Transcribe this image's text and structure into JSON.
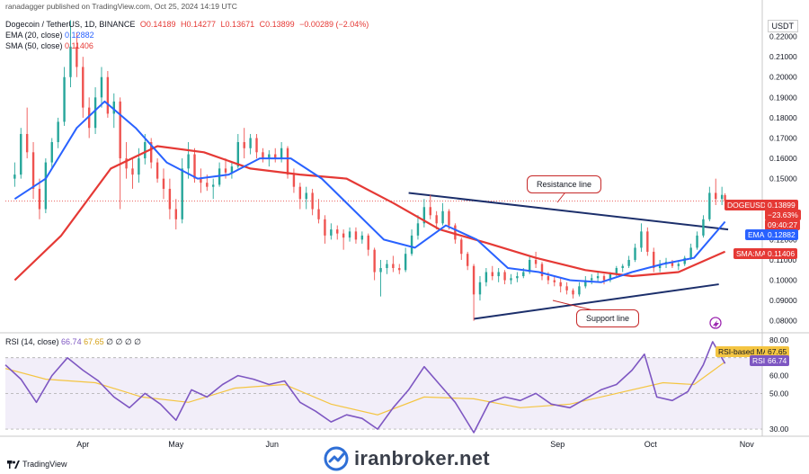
{
  "header": {
    "publisher": "ranadagger published on TradingView.com, Oct 25, 2024 14:19 UTC",
    "symbol": "Dogecoin / TetherUS, 1D, BINANCE",
    "open": "O0.14189",
    "high": "H0.14277",
    "low": "L0.13671",
    "close": "C0.13899",
    "change": "−0.00289 (−2.04%)",
    "ema_label": "EMA (20, close)",
    "ema_value": "0.12882",
    "sma_label": "SMA (50, close)",
    "sma_value": "0.11406"
  },
  "currency_button": "USDT",
  "price_axis": [
    "0.22000",
    "0.21000",
    "0.20000",
    "0.19000",
    "0.18000",
    "0.17000",
    "0.16000",
    "0.15000",
    "0.12000",
    "0.11000",
    "0.10000",
    "0.09000",
    "0.08000"
  ],
  "rsi_axis": [
    "80.00",
    "60.00",
    "50.00",
    "30.00"
  ],
  "time_axis": [
    "Apr",
    "May",
    "Jun",
    "Sep",
    "Oct",
    "Nov"
  ],
  "price_tags": {
    "symbol_tag": "DOGEUSDT",
    "last_price": "0.13899",
    "pct_change": "−23.63%",
    "countdown": "09:40:27",
    "ema_tag": "EMA",
    "ema_price": "0.12882",
    "sma_tag": "SMA:MA",
    "sma_price": "0.11406"
  },
  "rsi": {
    "legend_label": "RSI (14, close)",
    "legend_rsi": "66.74",
    "legend_ma": "67.65",
    "legend_zeros": "∅ ∅ ∅ ∅",
    "ma_tag": "RSI-based MA",
    "ma_value": "67.65",
    "rsi_tag": "RSI",
    "rsi_value": "66.74"
  },
  "annotations": {
    "resistance": "Resistance line",
    "support": "Support line"
  },
  "footer": {
    "brand": "TradingView",
    "watermark": "iranbroker.net"
  },
  "colors": {
    "up": "#26a69a",
    "down": "#ef5350",
    "ema": "#2962ff",
    "sma": "#e53935",
    "rsi": "#7e57c2",
    "rsi_ma": "#f4c542",
    "trendline": "#1c2f6b"
  },
  "chart_data": {
    "type": "candlestick",
    "ticker": "DOGEUSDT",
    "timeframe": "1D",
    "price_range": [
      0.075,
      0.23
    ],
    "rsi_range": [
      26,
      84
    ],
    "x_range": [
      "2024-03-07",
      "2024-11-06"
    ],
    "candles": [
      [
        "2024-03-10",
        0.15,
        0.158,
        0.146,
        0.152
      ],
      [
        "2024-03-12",
        0.152,
        0.175,
        0.15,
        0.172
      ],
      [
        "2024-03-14",
        0.172,
        0.185,
        0.16,
        0.163
      ],
      [
        "2024-03-16",
        0.163,
        0.168,
        0.14,
        0.145
      ],
      [
        "2024-03-18",
        0.145,
        0.15,
        0.13,
        0.135
      ],
      [
        "2024-03-20",
        0.135,
        0.16,
        0.133,
        0.158
      ],
      [
        "2024-03-22",
        0.158,
        0.17,
        0.155,
        0.168
      ],
      [
        "2024-03-24",
        0.168,
        0.18,
        0.165,
        0.178
      ],
      [
        "2024-03-26",
        0.178,
        0.205,
        0.176,
        0.2
      ],
      [
        "2024-03-28",
        0.2,
        0.228,
        0.195,
        0.215
      ],
      [
        "2024-03-30",
        0.215,
        0.222,
        0.2,
        0.205
      ],
      [
        "2024-04-01",
        0.205,
        0.21,
        0.18,
        0.185
      ],
      [
        "2024-04-03",
        0.185,
        0.19,
        0.17,
        0.175
      ],
      [
        "2024-04-05",
        0.175,
        0.195,
        0.172,
        0.19
      ],
      [
        "2024-04-07",
        0.19,
        0.205,
        0.185,
        0.2
      ],
      [
        "2024-04-09",
        0.2,
        0.203,
        0.18,
        0.182
      ],
      [
        "2024-04-11",
        0.182,
        0.192,
        0.175,
        0.188
      ],
      [
        "2024-04-13",
        0.188,
        0.19,
        0.135,
        0.16
      ],
      [
        "2024-04-15",
        0.16,
        0.168,
        0.15,
        0.155
      ],
      [
        "2024-04-17",
        0.155,
        0.16,
        0.145,
        0.152
      ],
      [
        "2024-04-19",
        0.152,
        0.165,
        0.148,
        0.16
      ],
      [
        "2024-04-21",
        0.16,
        0.172,
        0.157,
        0.168
      ],
      [
        "2024-04-23",
        0.168,
        0.17,
        0.155,
        0.158
      ],
      [
        "2024-04-25",
        0.158,
        0.16,
        0.148,
        0.15
      ],
      [
        "2024-04-27",
        0.15,
        0.155,
        0.14,
        0.145
      ],
      [
        "2024-04-29",
        0.145,
        0.15,
        0.13,
        0.135
      ],
      [
        "2024-05-01",
        0.135,
        0.14,
        0.125,
        0.13
      ],
      [
        "2024-05-03",
        0.13,
        0.16,
        0.128,
        0.155
      ],
      [
        "2024-05-05",
        0.155,
        0.168,
        0.15,
        0.162
      ],
      [
        "2024-05-07",
        0.162,
        0.165,
        0.148,
        0.15
      ],
      [
        "2024-05-09",
        0.15,
        0.155,
        0.143,
        0.148
      ],
      [
        "2024-05-11",
        0.148,
        0.152,
        0.144,
        0.146
      ],
      [
        "2024-05-13",
        0.146,
        0.15,
        0.14,
        0.147
      ],
      [
        "2024-05-15",
        0.147,
        0.158,
        0.146,
        0.155
      ],
      [
        "2024-05-17",
        0.155,
        0.16,
        0.15,
        0.153
      ],
      [
        "2024-05-19",
        0.153,
        0.158,
        0.15,
        0.156
      ],
      [
        "2024-05-21",
        0.156,
        0.172,
        0.155,
        0.168
      ],
      [
        "2024-05-23",
        0.168,
        0.175,
        0.16,
        0.165
      ],
      [
        "2024-05-25",
        0.165,
        0.172,
        0.162,
        0.17
      ],
      [
        "2024-05-27",
        0.17,
        0.172,
        0.16,
        0.163
      ],
      [
        "2024-05-29",
        0.163,
        0.165,
        0.158,
        0.16
      ],
      [
        "2024-05-31",
        0.16,
        0.164,
        0.156,
        0.162
      ],
      [
        "2024-06-02",
        0.162,
        0.165,
        0.158,
        0.16
      ],
      [
        "2024-06-04",
        0.16,
        0.168,
        0.158,
        0.165
      ],
      [
        "2024-06-06",
        0.165,
        0.166,
        0.15,
        0.152
      ],
      [
        "2024-06-08",
        0.152,
        0.155,
        0.143,
        0.146
      ],
      [
        "2024-06-10",
        0.146,
        0.148,
        0.135,
        0.14
      ],
      [
        "2024-06-12",
        0.14,
        0.146,
        0.135,
        0.143
      ],
      [
        "2024-06-14",
        0.143,
        0.145,
        0.132,
        0.135
      ],
      [
        "2024-06-16",
        0.135,
        0.14,
        0.128,
        0.13
      ],
      [
        "2024-06-18",
        0.13,
        0.132,
        0.118,
        0.122
      ],
      [
        "2024-06-20",
        0.122,
        0.128,
        0.12,
        0.125
      ],
      [
        "2024-06-22",
        0.125,
        0.127,
        0.12,
        0.123
      ],
      [
        "2024-06-24",
        0.123,
        0.125,
        0.115,
        0.121
      ],
      [
        "2024-06-26",
        0.121,
        0.126,
        0.119,
        0.124
      ],
      [
        "2024-06-28",
        0.124,
        0.126,
        0.118,
        0.12
      ],
      [
        "2024-06-30",
        0.12,
        0.124,
        0.118,
        0.122
      ],
      [
        "2024-07-02",
        0.122,
        0.123,
        0.112,
        0.115
      ],
      [
        "2024-07-04",
        0.115,
        0.116,
        0.1,
        0.104
      ],
      [
        "2024-07-06",
        0.104,
        0.11,
        0.092,
        0.106
      ],
      [
        "2024-07-08",
        0.106,
        0.11,
        0.103,
        0.108
      ],
      [
        "2024-07-10",
        0.108,
        0.112,
        0.104,
        0.106
      ],
      [
        "2024-07-12",
        0.106,
        0.108,
        0.103,
        0.105
      ],
      [
        "2024-07-14",
        0.105,
        0.116,
        0.104,
        0.113
      ],
      [
        "2024-07-16",
        0.113,
        0.125,
        0.112,
        0.122
      ],
      [
        "2024-07-18",
        0.122,
        0.132,
        0.12,
        0.128
      ],
      [
        "2024-07-20",
        0.128,
        0.14,
        0.126,
        0.136
      ],
      [
        "2024-07-22",
        0.136,
        0.142,
        0.13,
        0.132
      ],
      [
        "2024-07-24",
        0.132,
        0.134,
        0.125,
        0.128
      ],
      [
        "2024-07-26",
        0.128,
        0.138,
        0.127,
        0.134
      ],
      [
        "2024-07-28",
        0.134,
        0.135,
        0.125,
        0.127
      ],
      [
        "2024-07-30",
        0.127,
        0.128,
        0.118,
        0.12
      ],
      [
        "2024-08-01",
        0.12,
        0.121,
        0.11,
        0.113
      ],
      [
        "2024-08-03",
        0.113,
        0.114,
        0.105,
        0.107
      ],
      [
        "2024-08-05",
        0.107,
        0.108,
        0.08,
        0.093
      ],
      [
        "2024-08-07",
        0.093,
        0.102,
        0.09,
        0.099
      ],
      [
        "2024-08-09",
        0.099,
        0.106,
        0.097,
        0.104
      ],
      [
        "2024-08-11",
        0.104,
        0.107,
        0.1,
        0.102
      ],
      [
        "2024-08-13",
        0.102,
        0.106,
        0.099,
        0.104
      ],
      [
        "2024-08-15",
        0.104,
        0.105,
        0.098,
        0.1
      ],
      [
        "2024-08-17",
        0.1,
        0.103,
        0.098,
        0.101
      ],
      [
        "2024-08-19",
        0.101,
        0.104,
        0.099,
        0.102
      ],
      [
        "2024-08-21",
        0.102,
        0.106,
        0.101,
        0.104
      ],
      [
        "2024-08-23",
        0.104,
        0.112,
        0.103,
        0.11
      ],
      [
        "2024-08-25",
        0.11,
        0.114,
        0.106,
        0.108
      ],
      [
        "2024-08-27",
        0.108,
        0.109,
        0.1,
        0.102
      ],
      [
        "2024-08-29",
        0.102,
        0.104,
        0.098,
        0.1
      ],
      [
        "2024-08-31",
        0.1,
        0.102,
        0.097,
        0.099
      ],
      [
        "2024-09-02",
        0.099,
        0.101,
        0.094,
        0.097
      ],
      [
        "2024-09-04",
        0.097,
        0.099,
        0.093,
        0.095
      ],
      [
        "2024-09-06",
        0.095,
        0.096,
        0.091,
        0.093
      ],
      [
        "2024-09-08",
        0.093,
        0.099,
        0.092,
        0.097
      ],
      [
        "2024-09-10",
        0.097,
        0.102,
        0.096,
        0.1
      ],
      [
        "2024-09-12",
        0.1,
        0.103,
        0.098,
        0.101
      ],
      [
        "2024-09-14",
        0.101,
        0.104,
        0.099,
        0.102
      ],
      [
        "2024-09-16",
        0.102,
        0.103,
        0.098,
        0.1
      ],
      [
        "2024-09-18",
        0.1,
        0.104,
        0.099,
        0.103
      ],
      [
        "2024-09-20",
        0.103,
        0.107,
        0.102,
        0.106
      ],
      [
        "2024-09-22",
        0.106,
        0.108,
        0.104,
        0.107
      ],
      [
        "2024-09-24",
        0.107,
        0.112,
        0.106,
        0.11
      ],
      [
        "2024-09-26",
        0.11,
        0.118,
        0.109,
        0.116
      ],
      [
        "2024-09-28",
        0.116,
        0.128,
        0.114,
        0.124
      ],
      [
        "2024-09-30",
        0.124,
        0.126,
        0.112,
        0.114
      ],
      [
        "2024-10-02",
        0.114,
        0.116,
        0.104,
        0.106
      ],
      [
        "2024-10-04",
        0.106,
        0.11,
        0.104,
        0.108
      ],
      [
        "2024-10-06",
        0.108,
        0.111,
        0.106,
        0.109
      ],
      [
        "2024-10-08",
        0.109,
        0.11,
        0.106,
        0.107
      ],
      [
        "2024-10-10",
        0.107,
        0.109,
        0.105,
        0.108
      ],
      [
        "2024-10-12",
        0.108,
        0.112,
        0.107,
        0.111
      ],
      [
        "2024-10-14",
        0.111,
        0.118,
        0.11,
        0.116
      ],
      [
        "2024-10-16",
        0.116,
        0.124,
        0.115,
        0.122
      ],
      [
        "2024-10-18",
        0.122,
        0.132,
        0.121,
        0.13
      ],
      [
        "2024-10-20",
        0.13,
        0.146,
        0.129,
        0.143
      ],
      [
        "2024-10-22",
        0.143,
        0.15,
        0.137,
        0.14
      ],
      [
        "2024-10-24",
        0.14,
        0.146,
        0.137,
        0.142
      ],
      [
        "2024-10-25",
        0.1419,
        0.1428,
        0.1367,
        0.139
      ]
    ],
    "ema20": [
      [
        "2024-03-10",
        0.14
      ],
      [
        "2024-03-20",
        0.15
      ],
      [
        "2024-03-30",
        0.175
      ],
      [
        "2024-04-08",
        0.188
      ],
      [
        "2024-04-18",
        0.175
      ],
      [
        "2024-04-28",
        0.158
      ],
      [
        "2024-05-08",
        0.15
      ],
      [
        "2024-05-18",
        0.152
      ],
      [
        "2024-05-28",
        0.16
      ],
      [
        "2024-06-07",
        0.16
      ],
      [
        "2024-06-17",
        0.15
      ],
      [
        "2024-06-27",
        0.135
      ],
      [
        "2024-07-07",
        0.12
      ],
      [
        "2024-07-17",
        0.116
      ],
      [
        "2024-07-27",
        0.127
      ],
      [
        "2024-08-06",
        0.12
      ],
      [
        "2024-08-16",
        0.106
      ],
      [
        "2024-08-26",
        0.104
      ],
      [
        "2024-09-05",
        0.1
      ],
      [
        "2024-09-15",
        0.099
      ],
      [
        "2024-09-25",
        0.104
      ],
      [
        "2024-10-05",
        0.108
      ],
      [
        "2024-10-15",
        0.111
      ],
      [
        "2024-10-25",
        0.1288
      ]
    ],
    "sma50": [
      [
        "2024-03-10",
        0.1
      ],
      [
        "2024-03-25",
        0.122
      ],
      [
        "2024-04-10",
        0.155
      ],
      [
        "2024-04-25",
        0.166
      ],
      [
        "2024-05-10",
        0.163
      ],
      [
        "2024-05-25",
        0.155
      ],
      [
        "2024-06-10",
        0.152
      ],
      [
        "2024-06-25",
        0.15
      ],
      [
        "2024-07-10",
        0.138
      ],
      [
        "2024-07-25",
        0.125
      ],
      [
        "2024-08-10",
        0.118
      ],
      [
        "2024-08-25",
        0.111
      ],
      [
        "2024-09-10",
        0.105
      ],
      [
        "2024-09-25",
        0.102
      ],
      [
        "2024-10-10",
        0.104
      ],
      [
        "2024-10-25",
        0.1141
      ]
    ],
    "resistance_line": [
      [
        "2024-07-15",
        0.143
      ],
      [
        "2024-10-26",
        0.125
      ]
    ],
    "support_line": [
      [
        "2024-08-05",
        0.081
      ],
      [
        "2024-10-23",
        0.098
      ]
    ],
    "rsi_values": [
      [
        "2024-03-07",
        66
      ],
      [
        "2024-03-12",
        58
      ],
      [
        "2024-03-17",
        45
      ],
      [
        "2024-03-22",
        60
      ],
      [
        "2024-03-27",
        70
      ],
      [
        "2024-04-01",
        63
      ],
      [
        "2024-04-06",
        57
      ],
      [
        "2024-04-11",
        48
      ],
      [
        "2024-04-16",
        42
      ],
      [
        "2024-04-21",
        50
      ],
      [
        "2024-04-26",
        44
      ],
      [
        "2024-05-01",
        35
      ],
      [
        "2024-05-06",
        52
      ],
      [
        "2024-05-11",
        48
      ],
      [
        "2024-05-16",
        55
      ],
      [
        "2024-05-21",
        60
      ],
      [
        "2024-05-26",
        58
      ],
      [
        "2024-05-31",
        55
      ],
      [
        "2024-06-05",
        57
      ],
      [
        "2024-06-10",
        45
      ],
      [
        "2024-06-15",
        40
      ],
      [
        "2024-06-20",
        34
      ],
      [
        "2024-06-25",
        38
      ],
      [
        "2024-06-30",
        36
      ],
      [
        "2024-07-05",
        30
      ],
      [
        "2024-07-10",
        42
      ],
      [
        "2024-07-15",
        52
      ],
      [
        "2024-07-20",
        65
      ],
      [
        "2024-07-25",
        55
      ],
      [
        "2024-07-30",
        45
      ],
      [
        "2024-08-05",
        28
      ],
      [
        "2024-08-10",
        45
      ],
      [
        "2024-08-15",
        48
      ],
      [
        "2024-08-20",
        46
      ],
      [
        "2024-08-25",
        50
      ],
      [
        "2024-08-30",
        44
      ],
      [
        "2024-09-05",
        42
      ],
      [
        "2024-09-10",
        47
      ],
      [
        "2024-09-15",
        52
      ],
      [
        "2024-09-20",
        55
      ],
      [
        "2024-09-25",
        63
      ],
      [
        "2024-09-29",
        72
      ],
      [
        "2024-10-03",
        48
      ],
      [
        "2024-10-08",
        46
      ],
      [
        "2024-10-13",
        51
      ],
      [
        "2024-10-18",
        66
      ],
      [
        "2024-10-21",
        79
      ],
      [
        "2024-10-25",
        66.74
      ]
    ],
    "rsi_ma": [
      [
        "2024-03-07",
        64
      ],
      [
        "2024-03-20",
        58
      ],
      [
        "2024-04-05",
        56
      ],
      [
        "2024-04-20",
        48
      ],
      [
        "2024-05-05",
        45
      ],
      [
        "2024-05-20",
        53
      ],
      [
        "2024-06-05",
        55
      ],
      [
        "2024-06-20",
        44
      ],
      [
        "2024-07-05",
        38
      ],
      [
        "2024-07-20",
        48
      ],
      [
        "2024-08-05",
        47
      ],
      [
        "2024-08-20",
        42
      ],
      [
        "2024-09-05",
        44
      ],
      [
        "2024-09-20",
        50
      ],
      [
        "2024-10-05",
        56
      ],
      [
        "2024-10-15",
        55
      ],
      [
        "2024-10-25",
        67.65
      ]
    ]
  }
}
